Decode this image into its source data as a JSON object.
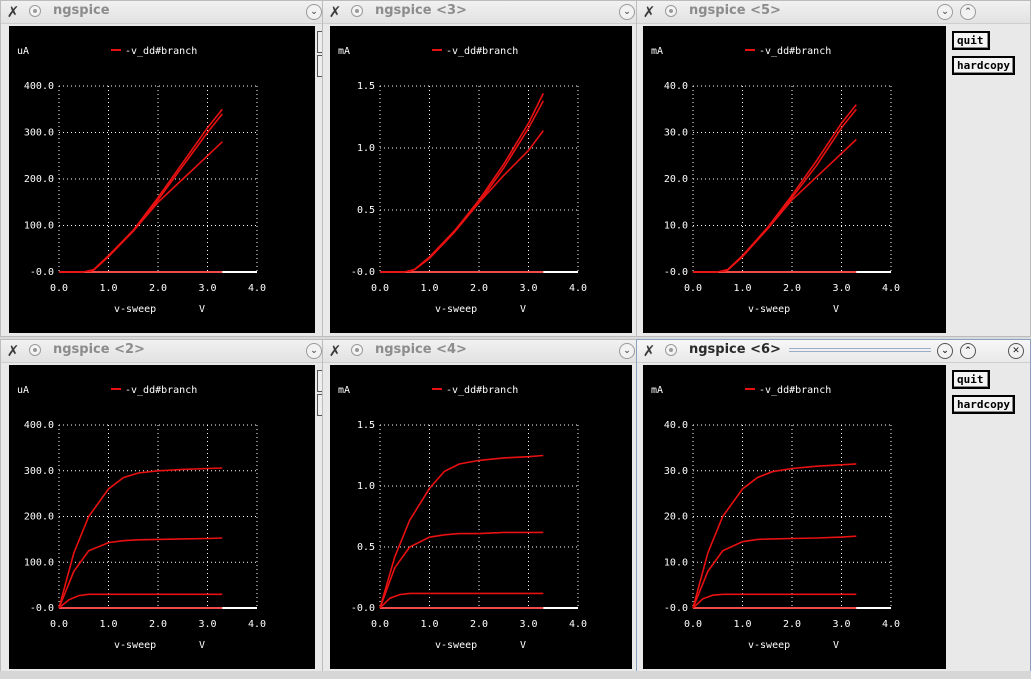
{
  "colors": {
    "trace": "#e81010",
    "grid": "#ffffff",
    "text": "#ffffff",
    "background": "#000000"
  },
  "icons": {
    "close": "x-icon",
    "menu": "window-menu-icon",
    "minimize": "chevron-down-icon",
    "maximize": "chevron-up-icon",
    "window_close": "close-icon"
  },
  "windows": [
    {
      "title": "ngspice",
      "active": false,
      "unit": "uA",
      "legend": "-v_dd#branch",
      "xlabel": "v-sweep",
      "xunit": "V"
    },
    {
      "title": "ngspice <3>",
      "active": false,
      "unit": "mA",
      "legend": "-v_dd#branch",
      "xlabel": "v-sweep",
      "xunit": "V"
    },
    {
      "title": "ngspice <5>",
      "active": false,
      "unit": "mA",
      "legend": "-v_dd#branch",
      "xlabel": "v-sweep",
      "xunit": "V",
      "buttons": {
        "quit": "quit",
        "hardcopy": "hardcopy"
      }
    },
    {
      "title": "ngspice <2>",
      "active": false,
      "unit": "uA",
      "legend": "-v_dd#branch",
      "xlabel": "v-sweep",
      "xunit": "V"
    },
    {
      "title": "ngspice <4>",
      "active": false,
      "unit": "mA",
      "legend": "-v_dd#branch",
      "xlabel": "v-sweep",
      "xunit": "V"
    },
    {
      "title": "ngspice <6>",
      "active": true,
      "unit": "mA",
      "legend": "-v_dd#branch",
      "xlabel": "v-sweep",
      "xunit": "V",
      "buttons": {
        "quit": "quit",
        "hardcopy": "hardcopy"
      }
    }
  ],
  "chart_data": [
    {
      "type": "line",
      "name": "ngspice",
      "x_ticks": [
        "0.0",
        "1.0",
        "2.0",
        "3.0",
        "4.0"
      ],
      "y_ticks": [
        "-0.0",
        "100.0",
        "200.0",
        "300.0",
        "400.0"
      ],
      "xlim": [
        0,
        4
      ],
      "ylim": [
        0,
        400
      ],
      "xlabel": "v-sweep",
      "xunit": "V",
      "ylabel": "uA",
      "series": [
        {
          "x": [
            0,
            0.5,
            0.7,
            1.0,
            1.5,
            2.0,
            2.5,
            3.0,
            3.3
          ],
          "y": [
            0,
            0,
            5,
            35,
            90,
            160,
            235,
            310,
            350
          ]
        },
        {
          "x": [
            0,
            0.5,
            0.7,
            1.0,
            1.5,
            2.0,
            2.5,
            3.0,
            3.3
          ],
          "y": [
            0,
            0,
            4,
            33,
            88,
            155,
            228,
            300,
            340
          ]
        },
        {
          "x": [
            0,
            0.5,
            0.7,
            1.0,
            1.5,
            2.0,
            2.5,
            3.0,
            3.3
          ],
          "y": [
            0,
            0,
            5,
            35,
            88,
            150,
            200,
            250,
            280
          ]
        },
        {
          "x": [
            0,
            3.3
          ],
          "y": [
            0,
            0
          ]
        }
      ]
    },
    {
      "type": "line",
      "name": "ngspice <3>",
      "x_ticks": [
        "0.0",
        "1.0",
        "2.0",
        "3.0",
        "4.0"
      ],
      "y_ticks": [
        "-0.0",
        "0.5",
        "1.0",
        "1.5"
      ],
      "xlim": [
        0,
        4
      ],
      "ylim": [
        0,
        1.5
      ],
      "xlabel": "v-sweep",
      "xunit": "V",
      "ylabel": "mA",
      "series": [
        {
          "x": [
            0,
            0.5,
            0.7,
            1.0,
            1.5,
            2.0,
            2.5,
            3.0,
            3.3
          ],
          "y": [
            0,
            0,
            0.02,
            0.12,
            0.33,
            0.58,
            0.87,
            1.2,
            1.44
          ]
        },
        {
          "x": [
            0,
            0.5,
            0.7,
            1.0,
            1.5,
            2.0,
            2.5,
            3.0,
            3.3
          ],
          "y": [
            0,
            0,
            0.02,
            0.11,
            0.32,
            0.56,
            0.84,
            1.16,
            1.38
          ]
        },
        {
          "x": [
            0,
            0.5,
            0.7,
            1.0,
            1.5,
            2.0,
            2.5,
            3.0,
            3.3
          ],
          "y": [
            0,
            0,
            0.02,
            0.12,
            0.33,
            0.56,
            0.78,
            0.98,
            1.14
          ]
        },
        {
          "x": [
            0,
            3.3
          ],
          "y": [
            0,
            0
          ]
        }
      ]
    },
    {
      "type": "line",
      "name": "ngspice <5>",
      "x_ticks": [
        "0.0",
        "1.0",
        "2.0",
        "3.0",
        "4.0"
      ],
      "y_ticks": [
        "-0.0",
        "10.0",
        "20.0",
        "30.0",
        "40.0"
      ],
      "xlim": [
        0,
        4
      ],
      "ylim": [
        0,
        40
      ],
      "xlabel": "v-sweep",
      "xunit": "V",
      "ylabel": "mA",
      "series": [
        {
          "x": [
            0,
            0.5,
            0.7,
            1.0,
            1.5,
            2.0,
            2.5,
            3.0,
            3.3
          ],
          "y": [
            0,
            0,
            0.5,
            3.5,
            9.5,
            16.5,
            24,
            32,
            36
          ]
        },
        {
          "x": [
            0,
            0.5,
            0.7,
            1.0,
            1.5,
            2.0,
            2.5,
            3.0,
            3.3
          ],
          "y": [
            0,
            0,
            0.4,
            3.3,
            9.2,
            16,
            23,
            31,
            35
          ]
        },
        {
          "x": [
            0,
            0.5,
            0.7,
            1.0,
            1.5,
            2.0,
            2.5,
            3.0,
            3.3
          ],
          "y": [
            0,
            0,
            0.5,
            3.5,
            9.2,
            15.5,
            20.5,
            25.5,
            28.5
          ]
        },
        {
          "x": [
            0,
            3.3
          ],
          "y": [
            0,
            0
          ]
        }
      ]
    },
    {
      "type": "line",
      "name": "ngspice <2>",
      "x_ticks": [
        "0.0",
        "1.0",
        "2.0",
        "3.0",
        "4.0"
      ],
      "y_ticks": [
        "-0.0",
        "100.0",
        "200.0",
        "300.0",
        "400.0"
      ],
      "xlim": [
        0,
        4
      ],
      "ylim": [
        0,
        400
      ],
      "xlabel": "v-sweep",
      "xunit": "V",
      "ylabel": "uA",
      "series": [
        {
          "x": [
            0,
            0.3,
            0.6,
            1.0,
            1.3,
            1.6,
            2.0,
            2.5,
            3.0,
            3.3
          ],
          "y": [
            0,
            120,
            200,
            260,
            285,
            295,
            300,
            303,
            305,
            306
          ]
        },
        {
          "x": [
            0,
            0.3,
            0.6,
            1.0,
            1.3,
            1.6,
            2.0,
            2.5,
            3.0,
            3.3
          ],
          "y": [
            0,
            80,
            125,
            143,
            147,
            149,
            150,
            151,
            152,
            153
          ]
        },
        {
          "x": [
            0,
            0.2,
            0.4,
            0.6,
            1.0,
            2.0,
            3.0,
            3.3
          ],
          "y": [
            0,
            18,
            27,
            30,
            30,
            30,
            30,
            30
          ]
        },
        {
          "x": [
            0,
            3.3
          ],
          "y": [
            0,
            0
          ]
        }
      ]
    },
    {
      "type": "line",
      "name": "ngspice <4>",
      "x_ticks": [
        "0.0",
        "1.0",
        "2.0",
        "3.0",
        "4.0"
      ],
      "y_ticks": [
        "-0.0",
        "0.5",
        "1.0",
        "1.5"
      ],
      "xlim": [
        0,
        4
      ],
      "ylim": [
        0,
        1.5
      ],
      "xlabel": "v-sweep",
      "xunit": "V",
      "ylabel": "mA",
      "series": [
        {
          "x": [
            0,
            0.3,
            0.6,
            1.0,
            1.3,
            1.6,
            2.0,
            2.5,
            3.0,
            3.3
          ],
          "y": [
            0,
            0.42,
            0.72,
            0.98,
            1.12,
            1.18,
            1.21,
            1.23,
            1.24,
            1.25
          ]
        },
        {
          "x": [
            0,
            0.3,
            0.6,
            1.0,
            1.3,
            1.6,
            2.0,
            2.5,
            3.0,
            3.3
          ],
          "y": [
            0,
            0.33,
            0.5,
            0.58,
            0.6,
            0.61,
            0.61,
            0.62,
            0.62,
            0.62
          ]
        },
        {
          "x": [
            0,
            0.2,
            0.4,
            0.6,
            1.0,
            2.0,
            3.0,
            3.3
          ],
          "y": [
            0,
            0.08,
            0.11,
            0.12,
            0.12,
            0.12,
            0.12,
            0.12
          ]
        },
        {
          "x": [
            0,
            3.3
          ],
          "y": [
            0,
            0
          ]
        }
      ]
    },
    {
      "type": "line",
      "name": "ngspice <6>",
      "x_ticks": [
        "0.0",
        "1.0",
        "2.0",
        "3.0",
        "4.0"
      ],
      "y_ticks": [
        "-0.0",
        "10.0",
        "20.0",
        "30.0",
        "40.0"
      ],
      "xlim": [
        0,
        4
      ],
      "ylim": [
        0,
        40
      ],
      "xlabel": "v-sweep",
      "xunit": "V",
      "ylabel": "mA",
      "series": [
        {
          "x": [
            0,
            0.3,
            0.6,
            1.0,
            1.3,
            1.6,
            2.0,
            2.5,
            3.0,
            3.3
          ],
          "y": [
            0,
            12,
            20,
            26,
            28.5,
            29.8,
            30.5,
            31,
            31.3,
            31.5
          ]
        },
        {
          "x": [
            0,
            0.3,
            0.6,
            1.0,
            1.3,
            1.6,
            2.0,
            2.5,
            3.0,
            3.3
          ],
          "y": [
            0,
            8,
            12.5,
            14.5,
            15,
            15.1,
            15.2,
            15.3,
            15.5,
            15.7
          ]
        },
        {
          "x": [
            0,
            0.2,
            0.4,
            0.6,
            1.0,
            2.0,
            3.0,
            3.3
          ],
          "y": [
            0,
            2,
            2.8,
            3,
            3,
            3,
            3,
            3
          ]
        },
        {
          "x": [
            0,
            3.3
          ],
          "y": [
            0,
            0
          ]
        }
      ]
    }
  ]
}
